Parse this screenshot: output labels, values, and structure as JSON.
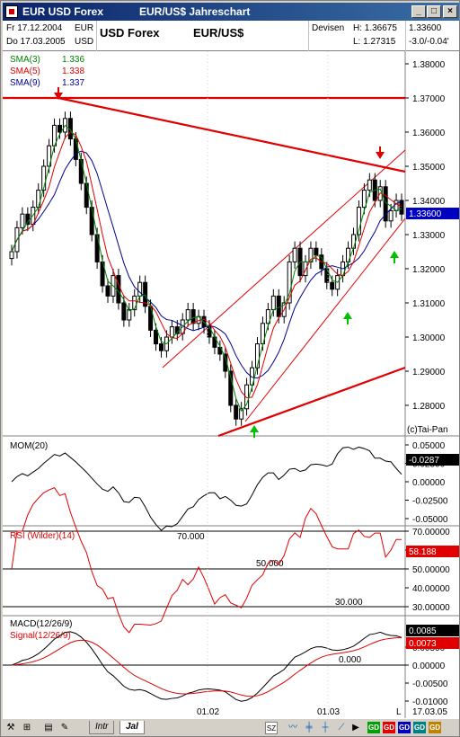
{
  "window": {
    "title_left": "EUR USD Forex",
    "title_right": "EUR/US$  Jahreschart"
  },
  "header": {
    "date_from": "Fr 17.12.2004",
    "date_to": "Do 17.03.2005",
    "currency_a": "EUR",
    "currency_b": "USD",
    "instrument": "USD Forex",
    "symbol": "EUR/US$",
    "market": "Devisen",
    "high": "H: 1.36675",
    "low": "L: 1.27315",
    "last": "1.33600",
    "change": "-3.0/-0.04'"
  },
  "main_chart": {
    "sma3_label": "SMA(3)",
    "sma3_value": "1.336",
    "sma5_label": "SMA(5)",
    "sma5_value": "1.338",
    "sma9_label": "SMA(9)",
    "sma9_value": "1.337",
    "price_ticks": [
      "1.38000",
      "1.37000",
      "1.36000",
      "1.35000",
      "1.34000",
      "1.33000",
      "1.32000",
      "1.31000",
      "1.30000",
      "1.29000",
      "1.28000"
    ],
    "last_marker": "1.33600",
    "copyright": "(c)Tai-Pan"
  },
  "mom": {
    "label": "MOM(20)",
    "ticks": [
      "0.05000",
      "0.02500",
      "0.00000",
      "-0.02500",
      "-0.05000"
    ],
    "last_marker": "-0.0287"
  },
  "rsi": {
    "label": "RSI (Wilder)(14)",
    "ticks": [
      "70.00000",
      "60.00000",
      "50.00000",
      "40.00000",
      "30.00000"
    ],
    "last_marker": "58.188",
    "level70": "70.000",
    "level50": "50.000",
    "level30": "30.000"
  },
  "macd": {
    "label": "MACD(12/26/9)",
    "signal_label": "Signal(12/26/9)",
    "ticks": [
      "0.00500",
      "0.00000",
      "-0.00500",
      "-0.01000"
    ],
    "macd_marker": "0.0085",
    "signal_marker": "0.0073",
    "zero_label": "0.000"
  },
  "x_axis": {
    "labels": [
      "01.02",
      "01.03",
      "L",
      "17.03.05"
    ]
  },
  "toolbar": {
    "tab1": "Intr",
    "tab2": "Jal",
    "gd_labels": [
      "GD",
      "GD",
      "GD",
      "GD",
      "GD"
    ]
  },
  "colors": {
    "title_bg": "#0a246a",
    "sma3": "#008000",
    "sma5": "#e00000",
    "sma9": "#000090",
    "trend": "#e00000",
    "arrow_down": "#e00000",
    "arrow_up": "#00c000",
    "last_marker_bg": "#0000c0"
  }
}
